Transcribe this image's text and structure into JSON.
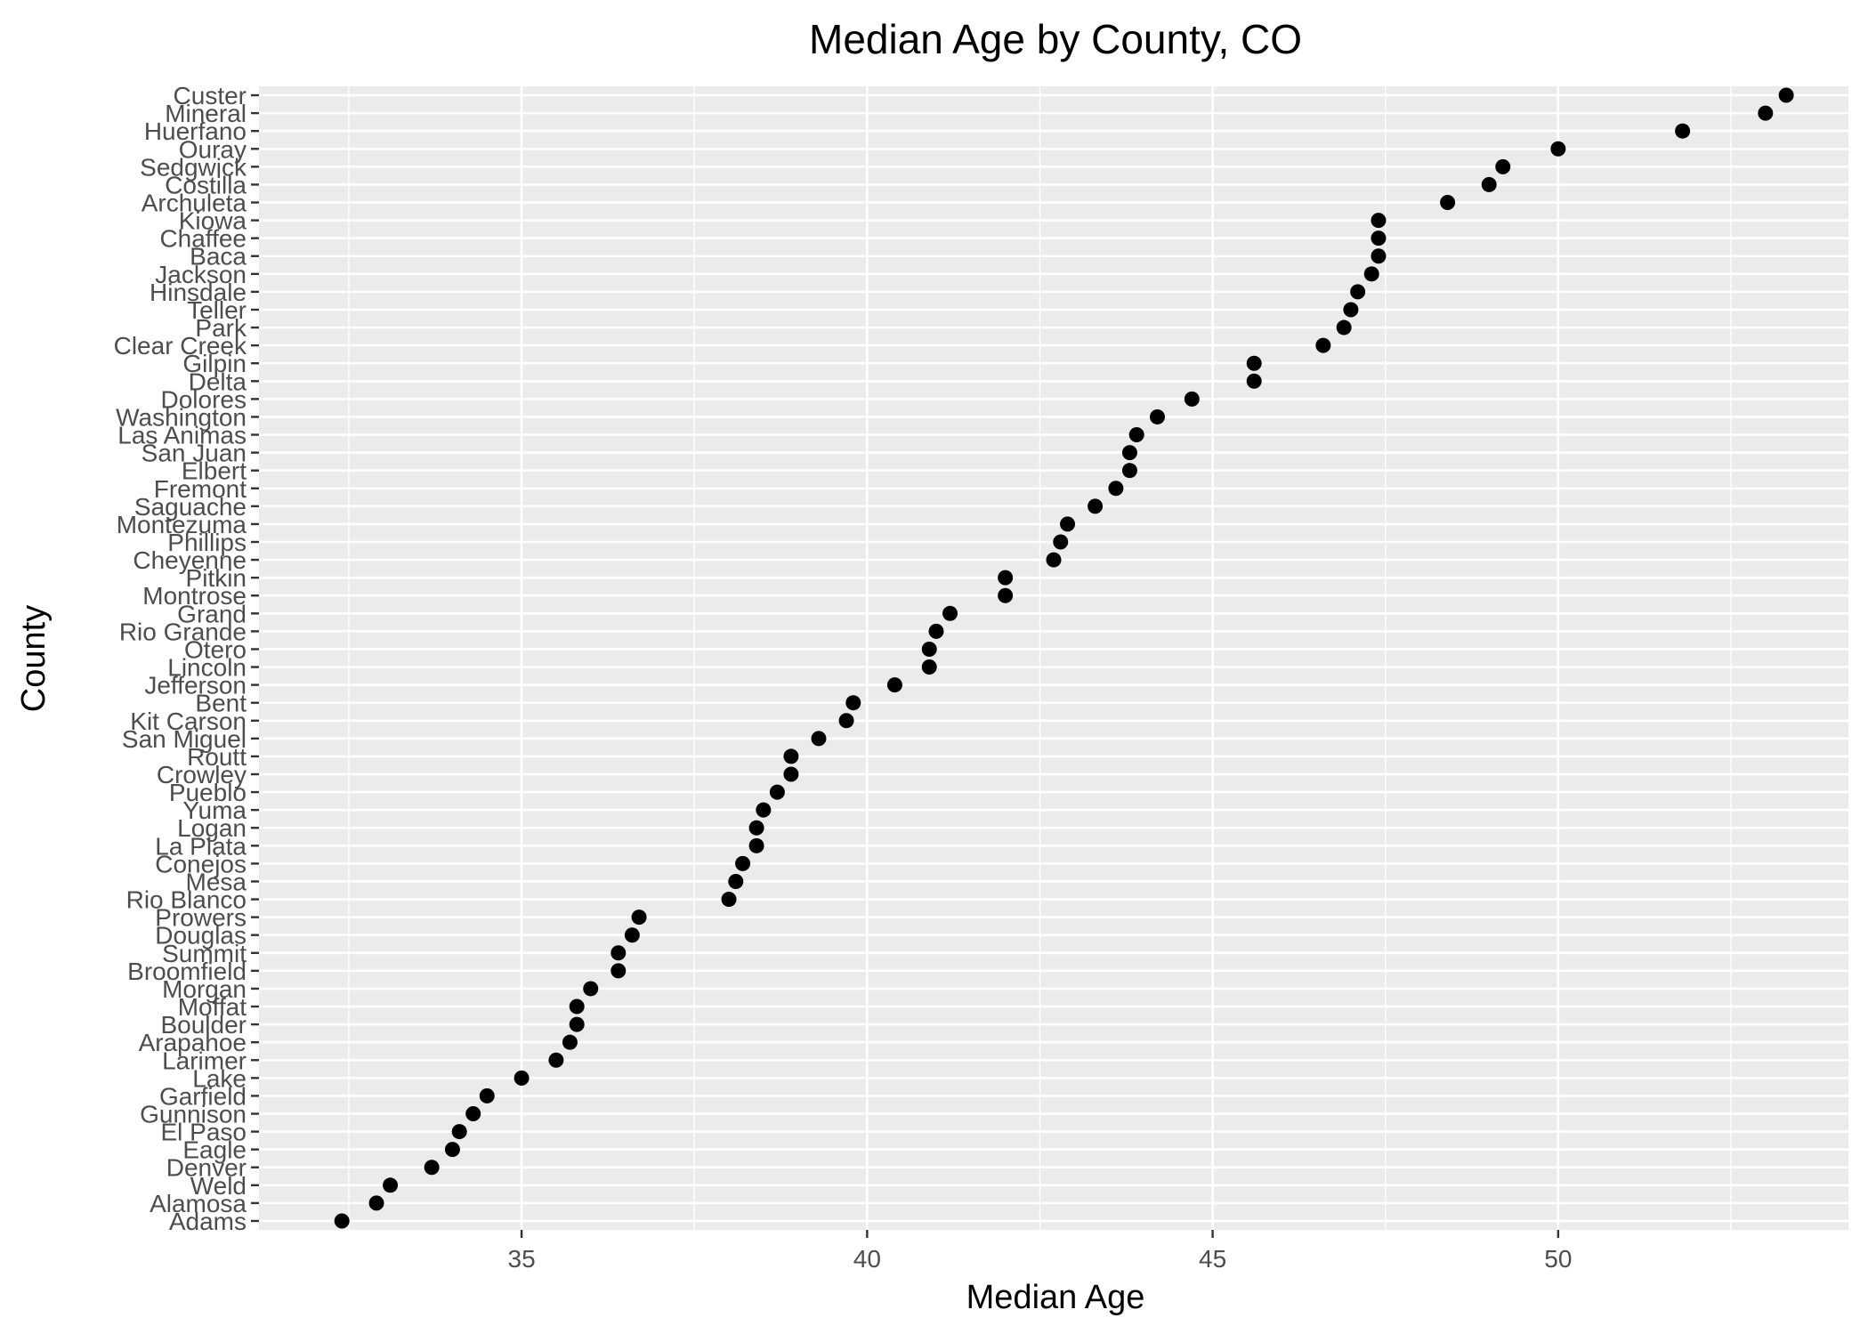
{
  "chart_data": {
    "type": "scatter",
    "title": "Median Age by County, CO",
    "xlabel": "Median Age",
    "ylabel": "County",
    "xlim": [
      31.2,
      54.2
    ],
    "xticks": [
      35,
      40,
      45,
      50
    ],
    "xtick_labels": [
      "35",
      "40",
      "45",
      "50"
    ],
    "grid": true,
    "legend": "none",
    "point_color": "#000000",
    "panel_background": "#ebebeb",
    "grid_color": "#ffffff",
    "points": [
      {
        "county": "Adams",
        "value": 32.4
      },
      {
        "county": "Alamosa",
        "value": 32.9
      },
      {
        "county": "Weld",
        "value": 33.1
      },
      {
        "county": "Denver",
        "value": 33.7
      },
      {
        "county": "Eagle",
        "value": 34.0
      },
      {
        "county": "El Paso",
        "value": 34.1
      },
      {
        "county": "Gunnison",
        "value": 34.3
      },
      {
        "county": "Garfield",
        "value": 34.5
      },
      {
        "county": "Lake",
        "value": 35.0
      },
      {
        "county": "Larimer",
        "value": 35.5
      },
      {
        "county": "Arapahoe",
        "value": 35.7
      },
      {
        "county": "Boulder",
        "value": 35.8
      },
      {
        "county": "Moffat",
        "value": 35.8
      },
      {
        "county": "Morgan",
        "value": 36.0
      },
      {
        "county": "Broomfield",
        "value": 36.4
      },
      {
        "county": "Summit",
        "value": 36.4
      },
      {
        "county": "Douglas",
        "value": 36.6
      },
      {
        "county": "Prowers",
        "value": 36.7
      },
      {
        "county": "Rio Blanco",
        "value": 38.0
      },
      {
        "county": "Mesa",
        "value": 38.1
      },
      {
        "county": "Conejos",
        "value": 38.2
      },
      {
        "county": "La Plata",
        "value": 38.4
      },
      {
        "county": "Logan",
        "value": 38.4
      },
      {
        "county": "Yuma",
        "value": 38.5
      },
      {
        "county": "Pueblo",
        "value": 38.7
      },
      {
        "county": "Crowley",
        "value": 38.9
      },
      {
        "county": "Routt",
        "value": 38.9
      },
      {
        "county": "San Miguel",
        "value": 39.3
      },
      {
        "county": "Kit Carson",
        "value": 39.7
      },
      {
        "county": "Bent",
        "value": 39.8
      },
      {
        "county": "Jefferson",
        "value": 40.4
      },
      {
        "county": "Lincoln",
        "value": 40.9
      },
      {
        "county": "Otero",
        "value": 40.9
      },
      {
        "county": "Rio Grande",
        "value": 41.0
      },
      {
        "county": "Grand",
        "value": 41.2
      },
      {
        "county": "Montrose",
        "value": 42.0
      },
      {
        "county": "Pitkin",
        "value": 42.0
      },
      {
        "county": "Cheyenne",
        "value": 42.7
      },
      {
        "county": "Phillips",
        "value": 42.8
      },
      {
        "county": "Montezuma",
        "value": 42.9
      },
      {
        "county": "Saguache",
        "value": 43.3
      },
      {
        "county": "Fremont",
        "value": 43.6
      },
      {
        "county": "Elbert",
        "value": 43.8
      },
      {
        "county": "San Juan",
        "value": 43.8
      },
      {
        "county": "Las Animas",
        "value": 43.9
      },
      {
        "county": "Washington",
        "value": 44.2
      },
      {
        "county": "Dolores",
        "value": 44.7
      },
      {
        "county": "Delta",
        "value": 45.6
      },
      {
        "county": "Gilpin",
        "value": 45.6
      },
      {
        "county": "Clear Creek",
        "value": 46.6
      },
      {
        "county": "Park",
        "value": 46.9
      },
      {
        "county": "Teller",
        "value": 47.0
      },
      {
        "county": "Hinsdale",
        "value": 47.1
      },
      {
        "county": "Jackson",
        "value": 47.3
      },
      {
        "county": "Baca",
        "value": 47.4
      },
      {
        "county": "Chaffee",
        "value": 47.4
      },
      {
        "county": "Kiowa",
        "value": 47.4
      },
      {
        "county": "Archuleta",
        "value": 48.4
      },
      {
        "county": "Costilla",
        "value": 49.0
      },
      {
        "county": "Sedgwick",
        "value": 49.2
      },
      {
        "county": "Ouray",
        "value": 50.0
      },
      {
        "county": "Huerfano",
        "value": 51.8
      },
      {
        "county": "Mineral",
        "value": 53.0
      },
      {
        "county": "Custer",
        "value": 53.3
      }
    ]
  }
}
